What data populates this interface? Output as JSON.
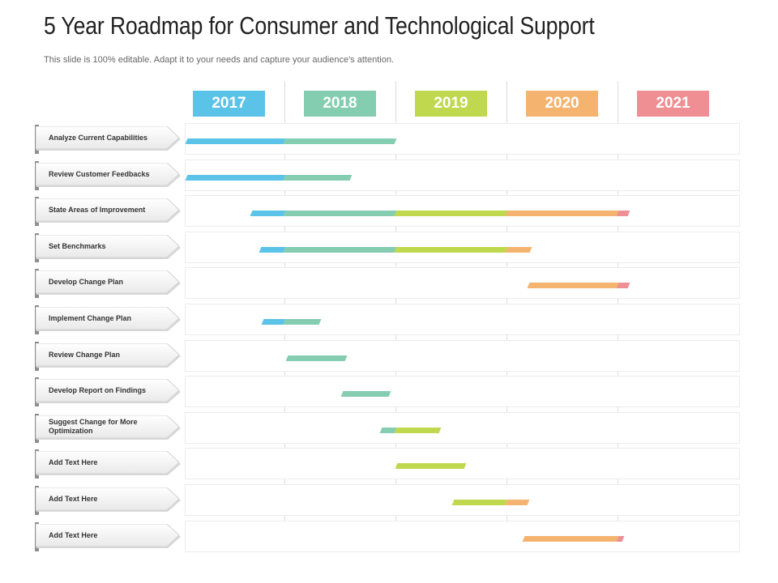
{
  "header": {
    "title": "5 Year Roadmap for Consumer and Technological Support",
    "subtitle": "This slide is 100% editable. Adapt it to your needs and capture your audience's attention."
  },
  "years": [
    {
      "label": "2017",
      "color": "#5bc3e8"
    },
    {
      "label": "2018",
      "color": "#84cdb0"
    },
    {
      "label": "2019",
      "color": "#bfd84d"
    },
    {
      "label": "2020",
      "color": "#f4b46f"
    },
    {
      "label": "2021",
      "color": "#ef8f94"
    }
  ],
  "tasks": [
    {
      "label": "Analyze Current Capabilities",
      "start": 2016.35,
      "end": 2019.0
    },
    {
      "label": "Review Customer Feedbacks",
      "start": 2016.75,
      "end": 2018.6
    },
    {
      "label": "State Areas of Improvement",
      "start": 2017.7,
      "end": 2021.1
    },
    {
      "label": "Set Benchmarks",
      "start": 2017.78,
      "end": 2020.22
    },
    {
      "label": "Develop Change Plan",
      "start": 2020.2,
      "end": 2021.1
    },
    {
      "label": "Implement Change Plan",
      "start": 2017.8,
      "end": 2018.32
    },
    {
      "label": "Review Change Plan",
      "start": 2018.02,
      "end": 2018.55
    },
    {
      "label": "Develop Report on Findings",
      "start": 2018.52,
      "end": 2018.95
    },
    {
      "label": "Suggest Change for More Optimization",
      "start": 2018.87,
      "end": 2019.4
    },
    {
      "label": "Add Text Here",
      "start": 2019.01,
      "end": 2019.63
    },
    {
      "label": "Add Text Here",
      "start": 2019.52,
      "end": 2020.2
    },
    {
      "label": "Add Text Here",
      "start": 2020.15,
      "end": 2021.05
    }
  ]
}
